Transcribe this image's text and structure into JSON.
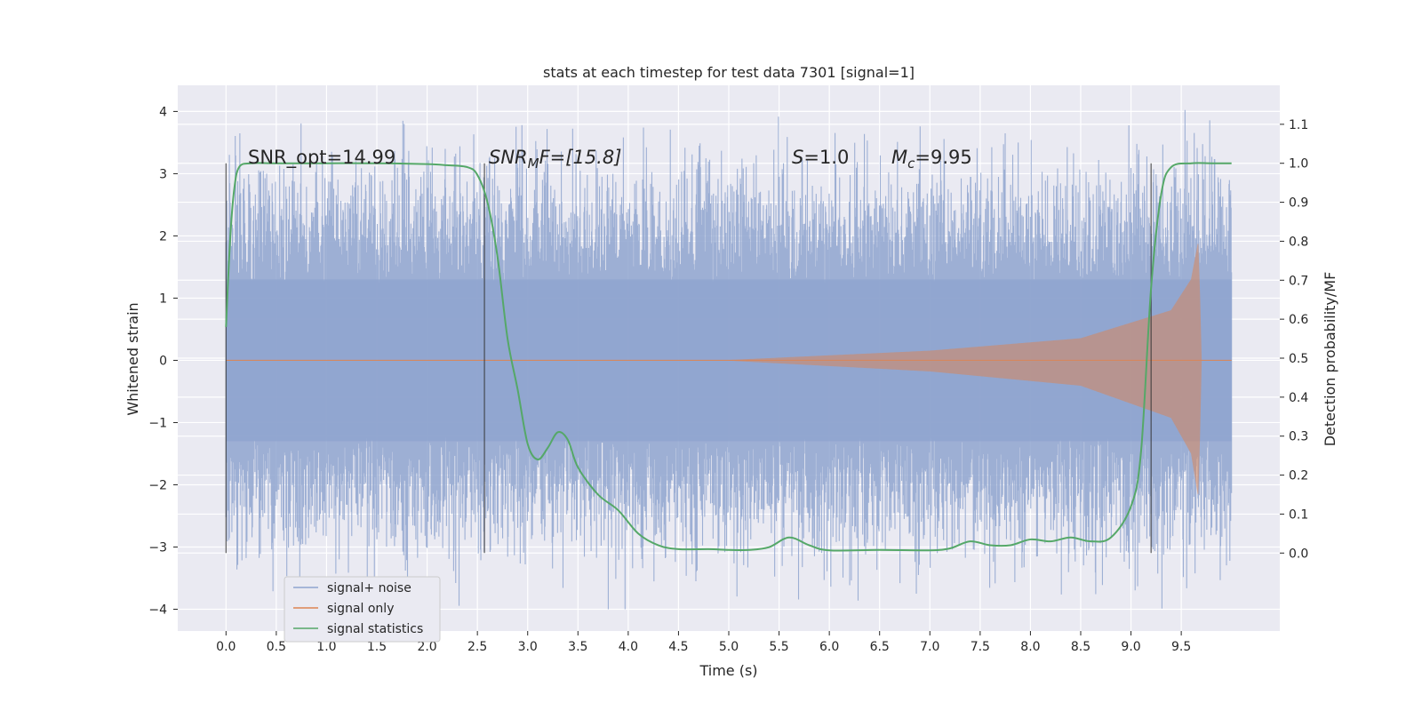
{
  "chart_data": {
    "type": "line",
    "title": "stats at each timestep for test data 7301 [signal=1]",
    "xlabel": "Time (s)",
    "ylabel_left": "Whitened strain",
    "ylabel_right": "Detection probability/MF",
    "xlim": [
      -0.48,
      10.48
    ],
    "ylim_left": [
      -4.35,
      4.42
    ],
    "ylim_right": [
      -0.2,
      1.2
    ],
    "x_ticks": [
      "0.0",
      "0.5",
      "1.0",
      "1.5",
      "2.0",
      "2.5",
      "3.0",
      "3.5",
      "4.0",
      "4.5",
      "5.0",
      "5.5",
      "6.0",
      "6.5",
      "7.0",
      "7.5",
      "8.0",
      "8.5",
      "9.0",
      "9.5"
    ],
    "y_ticks_left": [
      "4",
      "3",
      "2",
      "1",
      "0",
      "−1",
      "−2",
      "−3",
      "−4"
    ],
    "y_ticks_right": [
      "1.1",
      "1.0",
      "0.9",
      "0.8",
      "0.7",
      "0.6",
      "0.5",
      "0.4",
      "0.3",
      "0.2",
      "0.1",
      "0.0"
    ],
    "grid": true,
    "legend_position": "lower-left",
    "annotations": {
      "snr_opt": "SNR_opt=14.99",
      "snr_mf_base": "SNR",
      "snr_mf_sub": "M",
      "snr_mf_rest": "F=[15.8]",
      "s_base": "S",
      "s_rest": "=1.0",
      "mc_base": "M",
      "mc_sub": "c",
      "mc_rest": "=9.95"
    },
    "vertical_markers_x": [
      0.0,
      2.57,
      9.2
    ],
    "series": [
      {
        "name": "signal+ noise",
        "axis": "left",
        "color": "#8fa4cf",
        "x_range": [
          0.0,
          10.0
        ],
        "approx_envelope": [
          -4.0,
          4.05
        ]
      },
      {
        "name": "signal only",
        "axis": "left",
        "color": "#dd8452",
        "description_points_x": [
          0.0,
          5.0,
          7.0,
          8.5,
          9.4,
          9.6,
          9.67,
          9.7,
          10.0
        ],
        "amplitude": [
          0.0,
          0.0,
          0.15,
          0.35,
          0.8,
          1.3,
          1.9,
          0.0,
          0.0
        ]
      },
      {
        "name": "signal statistics",
        "axis": "right",
        "color": "#55a868",
        "x": [
          0.0,
          0.04,
          0.08,
          0.13,
          0.25,
          0.5,
          1.0,
          1.5,
          2.0,
          2.2,
          2.4,
          2.5,
          2.6,
          2.7,
          2.8,
          2.9,
          3.0,
          3.1,
          3.2,
          3.3,
          3.4,
          3.5,
          3.7,
          3.9,
          4.1,
          4.3,
          4.5,
          4.8,
          5.0,
          5.2,
          5.4,
          5.6,
          5.8,
          6.0,
          6.5,
          7.0,
          7.2,
          7.4,
          7.6,
          7.8,
          8.0,
          8.2,
          8.4,
          8.6,
          8.8,
          9.0,
          9.1,
          9.2,
          9.3,
          9.4,
          9.6,
          9.8,
          10.0
        ],
        "y": [
          0.58,
          0.8,
          0.93,
          0.99,
          1.0,
          1.0,
          1.0,
          1.0,
          0.998,
          0.995,
          0.99,
          0.97,
          0.9,
          0.76,
          0.55,
          0.42,
          0.28,
          0.24,
          0.27,
          0.31,
          0.29,
          0.22,
          0.15,
          0.11,
          0.05,
          0.02,
          0.01,
          0.01,
          0.008,
          0.008,
          0.015,
          0.04,
          0.02,
          0.007,
          0.008,
          0.007,
          0.012,
          0.03,
          0.02,
          0.02,
          0.035,
          0.03,
          0.04,
          0.03,
          0.04,
          0.12,
          0.26,
          0.68,
          0.92,
          0.99,
          1.0,
          1.0,
          1.0
        ]
      }
    ]
  }
}
